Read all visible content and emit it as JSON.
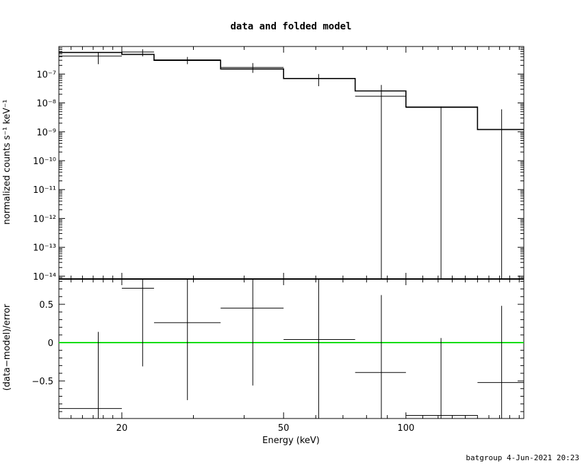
{
  "footer": "batgroup  4-Jun-2021 20:23",
  "colors": {
    "axes": "#000000",
    "data": "#000000",
    "model": "#000000",
    "zero_line": "#00dd00"
  },
  "chart_data": [
    {
      "type": "line",
      "title": "data and folded model",
      "xlabel": "",
      "ylabel": "normalized counts s⁻¹ keV⁻¹",
      "xscale": "log",
      "yscale": "log",
      "xlim": [
        14,
        195
      ],
      "ylim": [
        8e-15,
        9e-07
      ],
      "x_ticks": [],
      "y_ticks": [
        {
          "value": 1e-14,
          "label": "10⁻¹⁴"
        },
        {
          "value": 1e-13,
          "label": "10⁻¹³"
        },
        {
          "value": 1e-12,
          "label": "10⁻¹²"
        },
        {
          "value": 1e-11,
          "label": "10⁻¹¹"
        },
        {
          "value": 1e-10,
          "label": "10⁻¹⁰"
        },
        {
          "value": 1e-09,
          "label": "10⁻⁹"
        },
        {
          "value": 1e-08,
          "label": "10⁻⁸"
        },
        {
          "value": 1e-07,
          "label": "10⁻⁷"
        }
      ],
      "data_points": [
        {
          "x": 17.5,
          "xlo": 14,
          "xhi": 20,
          "y": 4.2e-07,
          "ylo": 2.2e-07,
          "yhi": 5.6e-07
        },
        {
          "x": 22.5,
          "xlo": 20,
          "xhi": 24,
          "y": 5.8e-07,
          "ylo": 4.1e-07,
          "yhi": 7.2e-07
        },
        {
          "x": 29,
          "xlo": 24,
          "xhi": 35,
          "y": 3.1e-07,
          "ylo": 2.2e-07,
          "yhi": 3.9e-07
        },
        {
          "x": 42,
          "xlo": 35,
          "xhi": 50,
          "y": 1.7e-07,
          "ylo": 1.1e-07,
          "yhi": 2.4e-07
        },
        {
          "x": 61,
          "xlo": 50,
          "xhi": 75,
          "y": 7e-08,
          "ylo": 3.8e-08,
          "yhi": 1e-07
        },
        {
          "x": 87,
          "xlo": 75,
          "xhi": 100,
          "y": 1.7e-08,
          "ylo": 8e-15,
          "yhi": 4.2e-08
        },
        {
          "x": 122,
          "xlo": 100,
          "xhi": 150,
          "y": 7e-09,
          "ylo": 8e-15,
          "yhi": 7.5e-09
        },
        {
          "x": 172,
          "xlo": 150,
          "xhi": 195,
          "y": 1.2e-09,
          "ylo": 8e-15,
          "yhi": 6e-09
        }
      ],
      "model_steps": [
        {
          "xlo": 14,
          "xhi": 20,
          "y": 5.6e-07
        },
        {
          "xlo": 20,
          "xhi": 24,
          "y": 4.8e-07
        },
        {
          "xlo": 24,
          "xhi": 35,
          "y": 3e-07
        },
        {
          "xlo": 35,
          "xhi": 50,
          "y": 1.5e-07
        },
        {
          "xlo": 50,
          "xhi": 75,
          "y": 7e-08
        },
        {
          "xlo": 75,
          "xhi": 100,
          "y": 2.6e-08
        },
        {
          "xlo": 100,
          "xhi": 150,
          "y": 7.2e-09
        },
        {
          "xlo": 150,
          "xhi": 195,
          "y": 1.2e-09
        }
      ]
    },
    {
      "type": "scatter",
      "title": "",
      "xlabel": "Energy (keV)",
      "ylabel": "(data−model)/error",
      "xscale": "log",
      "yscale": "linear",
      "xlim": [
        14,
        195
      ],
      "ylim": [
        -0.99,
        0.83
      ],
      "x_ticks": [
        {
          "value": 20,
          "label": "20"
        },
        {
          "value": 50,
          "label": "50"
        },
        {
          "value": 100,
          "label": "100"
        }
      ],
      "y_ticks": [
        {
          "value": 0.5,
          "label": "0.5"
        },
        {
          "value": 0,
          "label": "0"
        },
        {
          "value": -0.5,
          "label": "−0.5"
        }
      ],
      "zero_line": 0,
      "data_points": [
        {
          "x": 17.5,
          "xlo": 14,
          "xhi": 20,
          "y": -0.86,
          "ylo": -0.99,
          "yhi": 0.14
        },
        {
          "x": 22.5,
          "xlo": 20,
          "xhi": 24,
          "y": 0.71,
          "ylo": -0.31,
          "yhi": 0.83
        },
        {
          "x": 29,
          "xlo": 24,
          "xhi": 35,
          "y": 0.26,
          "ylo": -0.75,
          "yhi": 0.83
        },
        {
          "x": 42,
          "xlo": 35,
          "xhi": 50,
          "y": 0.45,
          "ylo": -0.56,
          "yhi": 0.83
        },
        {
          "x": 61,
          "xlo": 50,
          "xhi": 75,
          "y": 0.04,
          "ylo": -0.99,
          "yhi": 0.83
        },
        {
          "x": 87,
          "xlo": 75,
          "xhi": 100,
          "y": -0.39,
          "ylo": -0.99,
          "yhi": 0.62
        },
        {
          "x": 122,
          "xlo": 100,
          "xhi": 150,
          "y": -0.95,
          "ylo": -0.99,
          "yhi": 0.06
        },
        {
          "x": 172,
          "xlo": 150,
          "xhi": 195,
          "y": -0.52,
          "ylo": -0.99,
          "yhi": 0.48
        }
      ]
    }
  ]
}
